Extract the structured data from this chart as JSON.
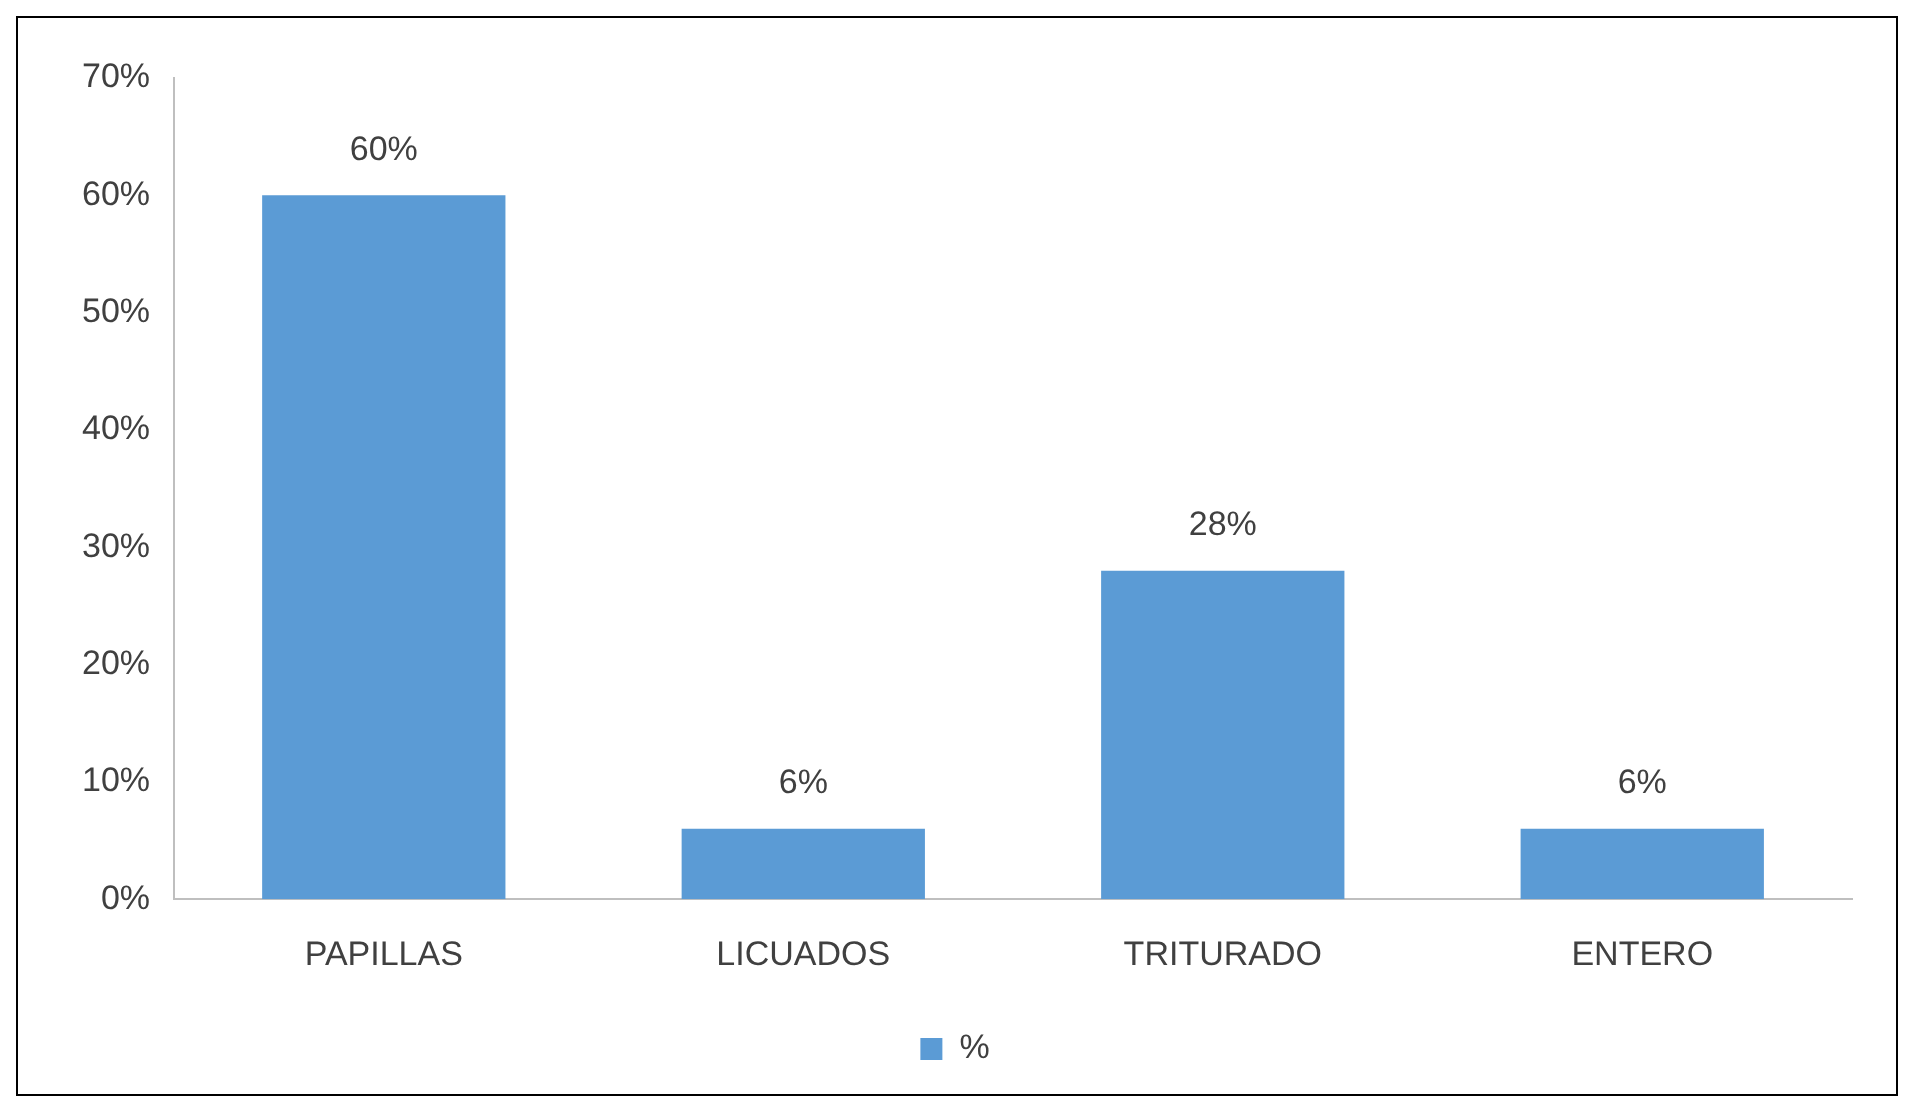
{
  "chart_data": {
    "type": "bar",
    "categories": [
      "PAPILLAS",
      "LICUADOS",
      "TRITURADO",
      "ENTERO"
    ],
    "series": [
      {
        "name": "%",
        "color": "#5b9bd5",
        "values": [
          60,
          6,
          28,
          6
        ],
        "value_labels": [
          "60%",
          "6%",
          "28%",
          "6%"
        ]
      }
    ],
    "ylim": [
      0,
      70
    ],
    "yticks": [
      {
        "value": 0,
        "label": "0%"
      },
      {
        "value": 10,
        "label": "10%"
      },
      {
        "value": 20,
        "label": "20%"
      },
      {
        "value": 30,
        "label": "30%"
      },
      {
        "value": 40,
        "label": "40%"
      },
      {
        "value": 50,
        "label": "50%"
      },
      {
        "value": 60,
        "label": "60%"
      },
      {
        "value": 70,
        "label": "70%"
      }
    ],
    "grid": false,
    "legend": "bottom"
  }
}
